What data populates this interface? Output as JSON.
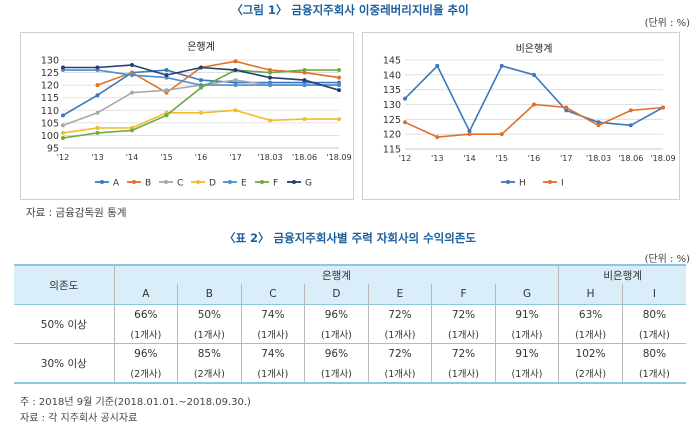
{
  "figure_title": "〈그림 1〉 금융지주회사 이중레버리지비율 추이",
  "figure_unit": "(단위 : %)",
  "figure_source": "자료 : 금융감독원 통계",
  "chart_data": [
    {
      "type": "line",
      "title": "은행계",
      "x": [
        "'12",
        "'13",
        "'14",
        "'15",
        "'16",
        "'17",
        "'18.03",
        "'18.06",
        "'18.09"
      ],
      "yticks": [
        95,
        100,
        105,
        110,
        115,
        120,
        125,
        130
      ],
      "ylim": [
        95,
        130
      ],
      "grid": true,
      "legend_position": "bottom",
      "series": [
        {
          "name": "A",
          "color": "#3b78c0",
          "values": [
            108,
            116,
            125,
            126,
            122,
            121,
            121,
            121,
            121
          ]
        },
        {
          "name": "B",
          "color": "#e0712b",
          "values": [
            null,
            120,
            125,
            117,
            127,
            129.5,
            126,
            125,
            123
          ]
        },
        {
          "name": "C",
          "color": "#a9a9a9",
          "values": [
            104,
            109,
            117,
            118,
            120,
            122,
            120,
            120,
            120
          ]
        },
        {
          "name": "D",
          "color": "#f2bd29",
          "values": [
            101,
            103,
            103,
            109,
            109,
            110,
            106,
            106.5,
            106.5
          ]
        },
        {
          "name": "E",
          "color": "#4b8fd0",
          "values": [
            126,
            126,
            124,
            123,
            120,
            120,
            120,
            120,
            120
          ]
        },
        {
          "name": "F",
          "color": "#6bac44",
          "values": [
            99,
            101,
            102,
            108,
            119,
            126,
            125,
            126,
            126
          ]
        },
        {
          "name": "G",
          "color": "#253f73",
          "values": [
            127,
            127,
            128,
            124,
            127,
            126,
            123,
            122,
            118
          ]
        }
      ]
    },
    {
      "type": "line",
      "title": "비은행계",
      "x": [
        "'12",
        "'13",
        "'14",
        "'15",
        "'16",
        "'17",
        "'18.03",
        "'18.06",
        "'18.09"
      ],
      "yticks": [
        115,
        120,
        125,
        130,
        135,
        140,
        145
      ],
      "ylim": [
        115,
        145
      ],
      "grid": true,
      "legend_position": "bottom",
      "series": [
        {
          "name": "H",
          "color": "#3b78c0",
          "values": [
            132,
            143,
            121,
            143,
            140,
            128,
            124,
            123,
            129
          ]
        },
        {
          "name": "I",
          "color": "#e0712b",
          "values": [
            124,
            119,
            120,
            120,
            130,
            129,
            123,
            128,
            129
          ]
        }
      ]
    }
  ],
  "table": {
    "title": "〈표 2〉 금융지주회사별 주력 자회사의 수익의존도",
    "unit": "(단위 : %)",
    "row_header": "의존도",
    "group_bank": "은행계",
    "group_nonbank": "비은행계",
    "columns": [
      "A",
      "B",
      "C",
      "D",
      "E",
      "F",
      "G",
      "H",
      "I"
    ],
    "rows": [
      {
        "label": "50% 이상",
        "values": [
          "66%",
          "50%",
          "74%",
          "96%",
          "72%",
          "72%",
          "91%",
          "63%",
          "80%"
        ],
        "counts": [
          "(1개사)",
          "(1개사)",
          "(1개사)",
          "(1개사)",
          "(1개사)",
          "(1개사)",
          "(1개사)",
          "(1개사)",
          "(1개사)"
        ]
      },
      {
        "label": "30% 이상",
        "values": [
          "96%",
          "85%",
          "74%",
          "96%",
          "72%",
          "72%",
          "91%",
          "102%",
          "80%"
        ],
        "counts": [
          "(2개사)",
          "(2개사)",
          "(1개사)",
          "(1개사)",
          "(1개사)",
          "(1개사)",
          "(1개사)",
          "(2개사)",
          "(1개사)"
        ]
      }
    ],
    "note": "주 : 2018년 9월 기준(2018.01.01.~2018.09.30.)",
    "source": "자료 : 각 지주회사 공시자료"
  }
}
